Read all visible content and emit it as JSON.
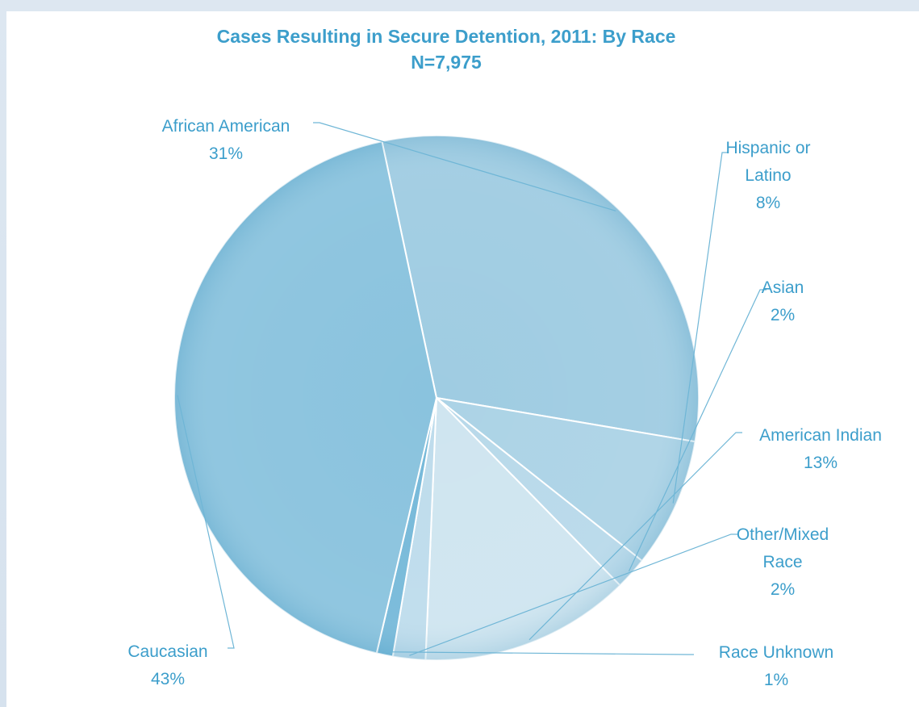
{
  "chart_data": {
    "type": "pie",
    "title": "Cases Resulting in Secure Detention, 2011: By Race",
    "subtitle": "N=7,975",
    "slices": [
      {
        "label_lines": [
          "African American"
        ],
        "value": 31,
        "value_label": "31%",
        "color": "#9fcce2"
      },
      {
        "label_lines": [
          "Hispanic or",
          "Latino"
        ],
        "value": 8,
        "value_label": "8%",
        "color": "#acd3e6"
      },
      {
        "label_lines": [
          "Asian"
        ],
        "value": 2,
        "value_label": "2%",
        "color": "#b8d9ea"
      },
      {
        "label_lines": [
          "American Indian"
        ],
        "value": 13,
        "value_label": "13%",
        "color": "#cfe5f0"
      },
      {
        "label_lines": [
          "Other/Mixed",
          "Race"
        ],
        "value": 2,
        "value_label": "2%",
        "color": "#bedcec"
      },
      {
        "label_lines": [
          "Race Unknown"
        ],
        "value": 1,
        "value_label": "1%",
        "color": "#76b9d9"
      },
      {
        "label_lines": [
          "Caucasian"
        ],
        "value": 43,
        "value_label": "43%",
        "color": "#8ac3de"
      }
    ],
    "legend": "none"
  }
}
